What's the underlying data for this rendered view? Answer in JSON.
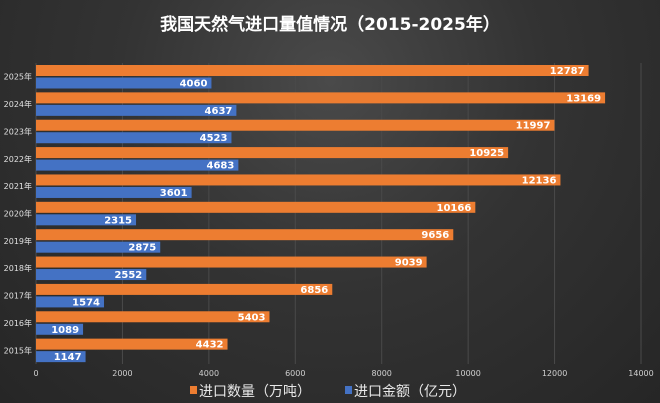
{
  "chart_data": {
    "type": "bar",
    "orientation": "horizontal",
    "title": "我国天然气进口量值情况（2015-2025年）",
    "categories": [
      "2025年",
      "2024年",
      "2023年",
      "2022年",
      "2021年",
      "2020年",
      "2019年",
      "2018年",
      "2017年",
      "2016年",
      "2015年"
    ],
    "series": [
      {
        "name": "进口数量（万吨）",
        "color": "#ed7d31",
        "values": [
          12787,
          13169,
          11997,
          10925,
          12136,
          10166,
          9656,
          9039,
          6856,
          5403,
          4432
        ]
      },
      {
        "name": "进口金额（亿元）",
        "color": "#4472c4",
        "values": [
          4060,
          4637,
          4523,
          4683,
          3601,
          2315,
          2875,
          2552,
          1574,
          1089,
          1147
        ]
      }
    ],
    "xlim": [
      0,
      14000
    ],
    "xticks": [
      "0",
      "2000",
      "4000",
      "6000",
      "8000",
      "10000",
      "12000",
      "14000"
    ],
    "grid": true,
    "legend": "bottom",
    "data_labels": true
  }
}
